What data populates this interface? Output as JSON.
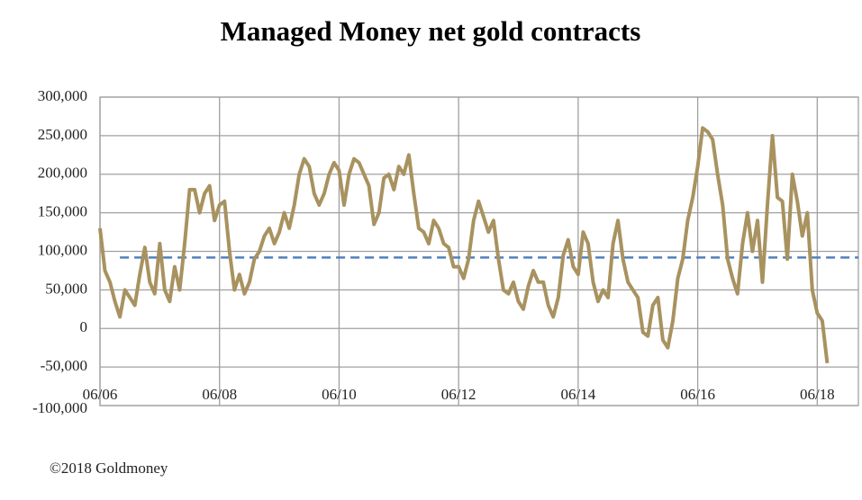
{
  "chart_data": {
    "type": "line",
    "title": "Managed Money net gold contracts",
    "source": "©2018 Goldmoney",
    "x": [
      "06/06",
      "07/06",
      "08/06",
      "09/06",
      "10/06",
      "11/06",
      "12/06",
      "01/07",
      "02/07",
      "03/07",
      "04/07",
      "05/07",
      "06/07",
      "07/07",
      "08/07",
      "09/07",
      "10/07",
      "11/07",
      "12/07",
      "01/08",
      "02/08",
      "03/08",
      "04/08",
      "05/08",
      "06/08",
      "07/08",
      "08/08",
      "09/08",
      "10/08",
      "11/08",
      "12/08",
      "01/09",
      "02/09",
      "03/09",
      "04/09",
      "05/09",
      "06/09",
      "07/09",
      "08/09",
      "09/09",
      "10/09",
      "11/09",
      "12/09",
      "01/10",
      "02/10",
      "03/10",
      "04/10",
      "05/10",
      "06/10",
      "07/10",
      "08/10",
      "09/10",
      "10/10",
      "11/10",
      "12/10",
      "01/11",
      "02/11",
      "03/11",
      "04/11",
      "05/11",
      "06/11",
      "07/11",
      "08/11",
      "09/11",
      "10/11",
      "11/11",
      "12/11",
      "01/12",
      "02/12",
      "03/12",
      "04/12",
      "05/12",
      "06/12",
      "07/12",
      "08/12",
      "09/12",
      "10/12",
      "11/12",
      "12/12",
      "01/13",
      "02/13",
      "03/13",
      "04/13",
      "05/13",
      "06/13",
      "07/13",
      "08/13",
      "09/13",
      "10/13",
      "11/13",
      "12/13",
      "01/14",
      "02/14",
      "03/14",
      "04/14",
      "05/14",
      "06/14",
      "07/14",
      "08/14",
      "09/14",
      "10/14",
      "11/14",
      "12/14",
      "01/15",
      "02/15",
      "03/15",
      "04/15",
      "05/15",
      "06/15",
      "07/15",
      "08/15",
      "09/15",
      "10/15",
      "11/15",
      "12/15",
      "01/16",
      "02/16",
      "03/16",
      "04/16",
      "05/16",
      "06/16",
      "07/16",
      "08/16",
      "09/16",
      "10/16",
      "11/16",
      "12/16",
      "01/17",
      "02/17",
      "03/17",
      "04/17",
      "05/17",
      "06/17",
      "07/17",
      "08/17",
      "09/17",
      "10/17",
      "11/17",
      "12/17",
      "01/18",
      "02/18",
      "03/18",
      "04/18",
      "05/18",
      "06/18",
      "07/18",
      "08/18"
    ],
    "series": [
      {
        "color": "#a8925f",
        "values": [
          130000,
          75000,
          60000,
          35000,
          15000,
          50000,
          40000,
          30000,
          70000,
          105000,
          60000,
          45000,
          110000,
          50000,
          35000,
          80000,
          50000,
          110000,
          180000,
          180000,
          150000,
          175000,
          185000,
          140000,
          160000,
          165000,
          100000,
          50000,
          70000,
          45000,
          60000,
          90000,
          100000,
          120000,
          130000,
          110000,
          125000,
          150000,
          130000,
          160000,
          200000,
          220000,
          210000,
          175000,
          160000,
          175000,
          200000,
          215000,
          205000,
          160000,
          200000,
          220000,
          215000,
          200000,
          185000,
          135000,
          150000,
          195000,
          200000,
          180000,
          210000,
          200000,
          225000,
          175000,
          130000,
          125000,
          110000,
          140000,
          130000,
          110000,
          105000,
          80000,
          80000,
          65000,
          90000,
          140000,
          165000,
          145000,
          125000,
          140000,
          90000,
          50000,
          45000,
          60000,
          35000,
          25000,
          55000,
          75000,
          60000,
          60000,
          30000,
          15000,
          40000,
          95000,
          115000,
          80000,
          70000,
          125000,
          110000,
          60000,
          35000,
          50000,
          40000,
          110000,
          140000,
          90000,
          60000,
          50000,
          40000,
          -5000,
          -10000,
          30000,
          40000,
          -15000,
          -25000,
          10000,
          65000,
          90000,
          140000,
          170000,
          210000,
          260000,
          255000,
          245000,
          200000,
          160000,
          90000,
          65000,
          45000,
          110000,
          150000,
          100000,
          140000,
          60000,
          160000,
          250000,
          170000,
          165000,
          90000,
          200000,
          165000,
          120000,
          150000,
          50000,
          20000,
          10000,
          -45000
        ]
      }
    ],
    "reference_line": {
      "value": 92000,
      "color": "#4f81bd",
      "from": "10/06"
    },
    "xticks": [
      "06/06",
      "06/08",
      "06/10",
      "06/12",
      "06/14",
      "06/16",
      "06/18"
    ],
    "ylim": [
      -100000,
      300000
    ],
    "yticks": [
      {
        "value": -100000,
        "label": "-100,000"
      },
      {
        "value": -50000,
        "label": "-50,000"
      },
      0,
      {
        "value": 50000,
        "label": "50,000"
      },
      {
        "value": 100000,
        "label": "100,000"
      },
      {
        "value": 150000,
        "label": "150,000"
      },
      {
        "value": 200000,
        "label": "200,000"
      },
      {
        "value": 250000,
        "label": "250,000"
      },
      {
        "value": 300000,
        "label": "300,000"
      }
    ],
    "grid": true
  }
}
